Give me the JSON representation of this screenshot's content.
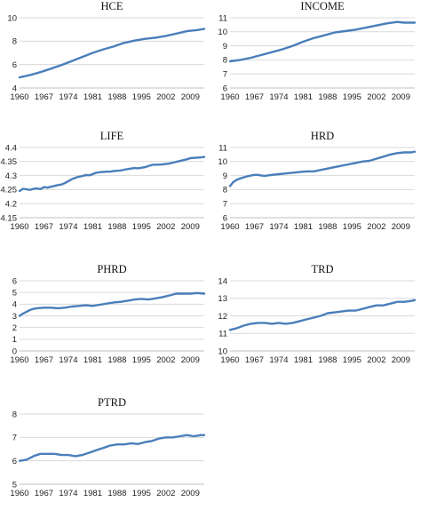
{
  "colors": {
    "series": "#4a7ebb",
    "grid": "#d9d9d9",
    "text": "#222222"
  },
  "chart_data": [
    {
      "type": "line",
      "title": "HCE",
      "x": [
        1960,
        1963,
        1966,
        1969,
        1972,
        1975,
        1978,
        1981,
        1984,
        1987,
        1990,
        1993,
        1996,
        1999,
        2002,
        2005,
        2008,
        2011,
        2013
      ],
      "series": [
        {
          "values": [
            4.9,
            5.1,
            5.35,
            5.65,
            5.95,
            6.3,
            6.65,
            7.0,
            7.3,
            7.55,
            7.85,
            8.05,
            8.2,
            8.3,
            8.45,
            8.65,
            8.85,
            8.95,
            9.05
          ]
        }
      ],
      "ylim": [
        4,
        10
      ],
      "yticks": [
        "4",
        "6",
        "8",
        "10"
      ],
      "xticks": [
        "1960",
        "1967",
        "1974",
        "1981",
        "1988",
        "1995",
        "2002",
        "2009"
      ]
    },
    {
      "type": "line",
      "title": "INCOME",
      "x": [
        1960,
        1963,
        1966,
        1969,
        1972,
        1975,
        1978,
        1981,
        1984,
        1987,
        1990,
        1993,
        1996,
        1999,
        2002,
        2005,
        2008,
        2010,
        2013
      ],
      "series": [
        {
          "values": [
            7.9,
            8.0,
            8.15,
            8.35,
            8.55,
            8.75,
            9.0,
            9.3,
            9.55,
            9.75,
            9.95,
            10.05,
            10.15,
            10.3,
            10.45,
            10.6,
            10.7,
            10.65,
            10.65
          ]
        }
      ],
      "ylim": [
        6,
        11
      ],
      "yticks": [
        "6",
        "7",
        "8",
        "9",
        "10",
        "11"
      ],
      "xticks": [
        "1960",
        "1967",
        "1974",
        "1981",
        "1988",
        "1995",
        "2002",
        "2009"
      ]
    },
    {
      "type": "line",
      "title": "LIFE",
      "x": [
        1960,
        1961,
        1962,
        1963,
        1964,
        1965,
        1966,
        1967,
        1968,
        1969,
        1970,
        1971,
        1972,
        1973,
        1974,
        1975,
        1976,
        1977,
        1978,
        1979,
        1980,
        1981,
        1982,
        1983,
        1984,
        1985,
        1986,
        1987,
        1988,
        1989,
        1990,
        1991,
        1992,
        1993,
        1994,
        1995,
        1996,
        1997,
        1998,
        1999,
        2000,
        2001,
        2002,
        2003,
        2004,
        2005,
        2006,
        2007,
        2008,
        2009,
        2010,
        2011,
        2012,
        2013
      ],
      "series": [
        {
          "values": [
            4.245,
            4.253,
            4.251,
            4.249,
            4.253,
            4.254,
            4.252,
            4.259,
            4.257,
            4.26,
            4.263,
            4.266,
            4.268,
            4.273,
            4.28,
            4.287,
            4.292,
            4.296,
            4.298,
            4.302,
            4.301,
            4.305,
            4.31,
            4.312,
            4.313,
            4.314,
            4.314,
            4.316,
            4.317,
            4.318,
            4.321,
            4.323,
            4.325,
            4.327,
            4.326,
            4.328,
            4.33,
            4.334,
            4.338,
            4.339,
            4.339,
            4.34,
            4.341,
            4.343,
            4.346,
            4.349,
            4.352,
            4.355,
            4.358,
            4.362,
            4.363,
            4.364,
            4.365,
            4.366
          ]
        }
      ],
      "ylim": [
        4.15,
        4.4
      ],
      "yticks": [
        "4.15",
        "4.2",
        "4.25",
        "4.3",
        "4.35",
        "4.4"
      ],
      "xticks": [
        "1960",
        "1967",
        "1974",
        "1981",
        "1988",
        "1995",
        "2002",
        "2009"
      ]
    },
    {
      "type": "line",
      "title": "HRD",
      "x": [
        1960,
        1961,
        1962,
        1963,
        1964,
        1965,
        1966,
        1967,
        1968,
        1969,
        1970,
        1972,
        1974,
        1976,
        1978,
        1980,
        1982,
        1984,
        1986,
        1988,
        1990,
        1992,
        1994,
        1996,
        1998,
        2000,
        2002,
        2004,
        2006,
        2008,
        2010,
        2012,
        2013
      ],
      "series": [
        {
          "values": [
            8.25,
            8.55,
            8.7,
            8.8,
            8.88,
            8.95,
            9.0,
            9.05,
            9.05,
            9.0,
            8.98,
            9.05,
            9.1,
            9.15,
            9.2,
            9.25,
            9.3,
            9.3,
            9.4,
            9.5,
            9.6,
            9.7,
            9.8,
            9.9,
            10.0,
            10.05,
            10.2,
            10.35,
            10.5,
            10.6,
            10.65,
            10.65,
            10.7
          ]
        }
      ],
      "ylim": [
        6,
        11
      ],
      "yticks": [
        "6",
        "7",
        "8",
        "9",
        "10",
        "11"
      ],
      "xticks": [
        "1960",
        "1967",
        "1974",
        "1981",
        "1988",
        "1995",
        "2002",
        "2009"
      ]
    },
    {
      "type": "line",
      "title": "PHRD",
      "x": [
        1960,
        1961,
        1962,
        1963,
        1964,
        1965,
        1967,
        1969,
        1971,
        1973,
        1975,
        1977,
        1979,
        1981,
        1983,
        1985,
        1987,
        1989,
        1991,
        1993,
        1995,
        1997,
        1999,
        2001,
        2003,
        2005,
        2007,
        2009,
        2011,
        2013
      ],
      "series": [
        {
          "values": [
            3.0,
            3.2,
            3.35,
            3.5,
            3.6,
            3.65,
            3.7,
            3.7,
            3.65,
            3.7,
            3.8,
            3.85,
            3.9,
            3.85,
            3.95,
            4.05,
            4.15,
            4.2,
            4.3,
            4.4,
            4.45,
            4.4,
            4.5,
            4.6,
            4.75,
            4.9,
            4.9,
            4.9,
            4.95,
            4.9
          ]
        }
      ],
      "ylim": [
        0,
        6
      ],
      "yticks": [
        "0",
        "1",
        "2",
        "3",
        "4",
        "5",
        "6"
      ],
      "xticks": [
        "1960",
        "1967",
        "1974",
        "1981",
        "1988",
        "1995",
        "2002",
        "2009"
      ]
    },
    {
      "type": "line",
      "title": "TRD",
      "x": [
        1960,
        1962,
        1964,
        1966,
        1968,
        1970,
        1972,
        1974,
        1976,
        1978,
        1980,
        1982,
        1984,
        1986,
        1988,
        1990,
        1992,
        1994,
        1996,
        1998,
        2000,
        2002,
        2004,
        2006,
        2008,
        2010,
        2012,
        2013
      ],
      "series": [
        {
          "values": [
            11.2,
            11.3,
            11.45,
            11.55,
            11.6,
            11.6,
            11.55,
            11.6,
            11.55,
            11.6,
            11.7,
            11.8,
            11.9,
            12.0,
            12.15,
            12.2,
            12.25,
            12.3,
            12.3,
            12.4,
            12.5,
            12.6,
            12.6,
            12.7,
            12.8,
            12.8,
            12.85,
            12.9
          ]
        }
      ],
      "ylim": [
        10,
        14
      ],
      "yticks": [
        "10",
        "11",
        "12",
        "13",
        "14"
      ],
      "xticks": [
        "1960",
        "1967",
        "1974",
        "1981",
        "1988",
        "1995",
        "2002",
        "2009"
      ]
    },
    {
      "type": "line",
      "title": "PTRD",
      "x": [
        1960,
        1962,
        1964,
        1966,
        1968,
        1970,
        1972,
        1974,
        1976,
        1978,
        1980,
        1982,
        1984,
        1986,
        1988,
        1990,
        1992,
        1994,
        1996,
        1998,
        2000,
        2002,
        2004,
        2006,
        2008,
        2010,
        2012,
        2013
      ],
      "series": [
        {
          "values": [
            6.0,
            6.05,
            6.2,
            6.3,
            6.3,
            6.3,
            6.25,
            6.25,
            6.2,
            6.25,
            6.35,
            6.45,
            6.55,
            6.65,
            6.7,
            6.7,
            6.75,
            6.72,
            6.8,
            6.85,
            6.95,
            7.0,
            7.0,
            7.05,
            7.1,
            7.05,
            7.1,
            7.1
          ]
        }
      ],
      "ylim": [
        5,
        8
      ],
      "yticks": [
        "5",
        "6",
        "7",
        "8"
      ],
      "xticks": [
        "1960",
        "1967",
        "1974",
        "1981",
        "1988",
        "1995",
        "2002",
        "2009"
      ]
    }
  ]
}
